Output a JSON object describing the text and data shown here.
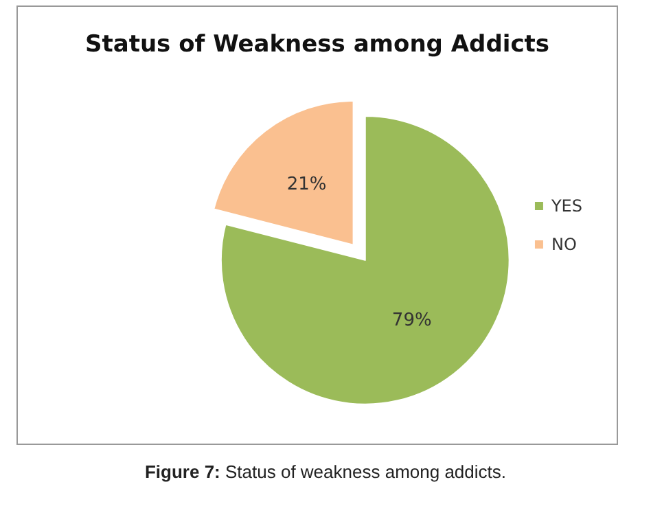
{
  "chart_data": {
    "type": "pie",
    "title": "Status of Weakness among Addicts",
    "categories": [
      "YES",
      "NO"
    ],
    "values": [
      79,
      21
    ],
    "colors": [
      "#9bbb59",
      "#fac090"
    ],
    "value_labels": [
      "79%",
      "21%"
    ],
    "legend": "right",
    "annotations": [
      "Figure 7: Status of weakness among addicts."
    ]
  }
}
